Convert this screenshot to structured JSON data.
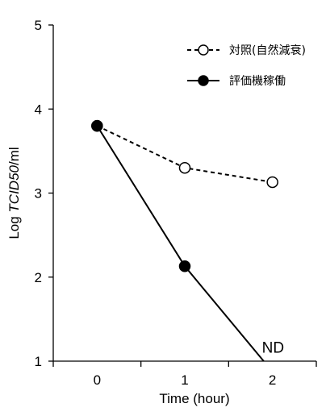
{
  "chart_data": {
    "type": "line",
    "xlabel": "Time (hour)",
    "ylabel_prefix": "Log ",
    "ylabel_italic": "TCID50",
    "ylabel_suffix": "/ml",
    "xlim": [
      -0.5,
      2.5
    ],
    "ylim": [
      1,
      5
    ],
    "x_ticks": [
      0,
      1,
      2
    ],
    "y_ticks": [
      1,
      2,
      3,
      4,
      5
    ],
    "grid": false,
    "legend_position": "top-right",
    "series": [
      {
        "name": "対照(自然減衰)",
        "line_style": "dashed",
        "marker": "open-circle",
        "x": [
          0,
          1,
          2
        ],
        "y": [
          3.8,
          3.3,
          3.13
        ]
      },
      {
        "name": "評価機稼働",
        "line_style": "solid",
        "marker": "filled-circle",
        "x": [
          0,
          1,
          1.9
        ],
        "y": [
          3.8,
          2.13,
          1.0
        ],
        "marker_indices": [
          0,
          1
        ]
      }
    ],
    "annotations": [
      {
        "text": "ND",
        "x": 1.88,
        "y": 1.1
      }
    ],
    "colors": {
      "line": "#000000",
      "open_marker_fill": "#ffffff",
      "filled_marker": "#000000"
    }
  }
}
